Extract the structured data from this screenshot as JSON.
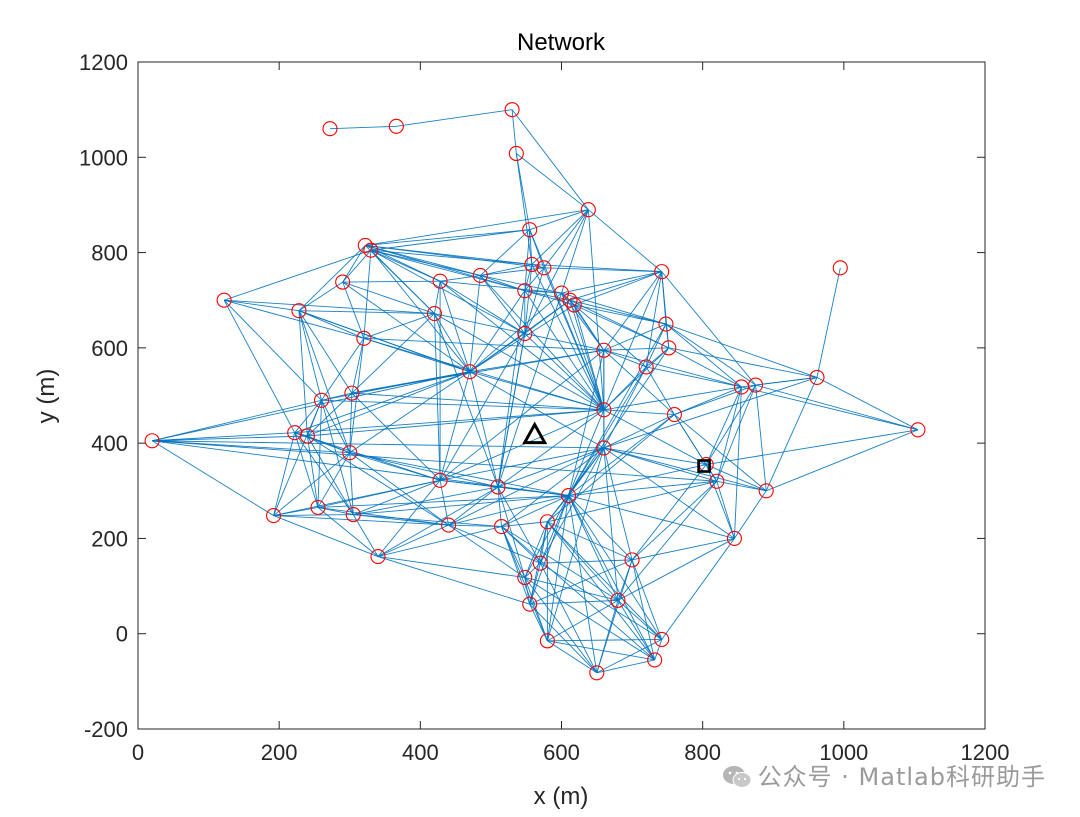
{
  "chart_data": {
    "type": "scatter",
    "title": "Network",
    "xlabel": "x (m)",
    "ylabel": "y (m)",
    "xlim": [
      0,
      1200
    ],
    "ylim": [
      -200,
      1200
    ],
    "xticks": [
      0,
      200,
      400,
      600,
      800,
      1000,
      1200
    ],
    "yticks": [
      -200,
      0,
      200,
      400,
      600,
      800,
      1000,
      1200
    ],
    "grid": false,
    "legend": "none",
    "colors": {
      "node": "#ff0000",
      "edge": "#0072bd",
      "marker": "#000000"
    },
    "nodes": [
      [
        272,
        1060
      ],
      [
        366,
        1065
      ],
      [
        530,
        1100
      ],
      [
        536,
        1008
      ],
      [
        638,
        890
      ],
      [
        555,
        848
      ],
      [
        322,
        815
      ],
      [
        330,
        805
      ],
      [
        558,
        775
      ],
      [
        575,
        768
      ],
      [
        742,
        760
      ],
      [
        995,
        768
      ],
      [
        122,
        700
      ],
      [
        228,
        678
      ],
      [
        290,
        738
      ],
      [
        428,
        740
      ],
      [
        485,
        752
      ],
      [
        548,
        720
      ],
      [
        600,
        715
      ],
      [
        612,
        700
      ],
      [
        618,
        690
      ],
      [
        420,
        672
      ],
      [
        748,
        650
      ],
      [
        548,
        630
      ],
      [
        320,
        620
      ],
      [
        752,
        600
      ],
      [
        660,
        595
      ],
      [
        962,
        538
      ],
      [
        875,
        522
      ],
      [
        855,
        518
      ],
      [
        260,
        490
      ],
      [
        303,
        505
      ],
      [
        760,
        460
      ],
      [
        1105,
        428
      ],
      [
        20,
        405
      ],
      [
        222,
        422
      ],
      [
        240,
        415
      ],
      [
        300,
        380
      ],
      [
        660,
        390
      ],
      [
        805,
        355
      ],
      [
        820,
        320
      ],
      [
        428,
        322
      ],
      [
        510,
        308
      ],
      [
        890,
        300
      ],
      [
        255,
        265
      ],
      [
        305,
        250
      ],
      [
        192,
        248
      ],
      [
        440,
        228
      ],
      [
        515,
        225
      ],
      [
        580,
        235
      ],
      [
        845,
        200
      ],
      [
        340,
        162
      ],
      [
        700,
        155
      ],
      [
        548,
        118
      ],
      [
        570,
        148
      ],
      [
        680,
        70
      ],
      [
        555,
        62
      ],
      [
        580,
        -15
      ],
      [
        742,
        -12
      ],
      [
        732,
        -55
      ],
      [
        650,
        -82
      ],
      [
        610,
        290
      ],
      [
        470,
        550
      ],
      [
        660,
        470
      ],
      [
        720,
        560
      ]
    ],
    "edges": [
      [
        0,
        1
      ],
      [
        1,
        2
      ],
      [
        2,
        3
      ],
      [
        2,
        4
      ],
      [
        3,
        4
      ],
      [
        3,
        8
      ],
      [
        3,
        5
      ],
      [
        4,
        5
      ],
      [
        4,
        10
      ],
      [
        4,
        8
      ],
      [
        4,
        9
      ],
      [
        4,
        23
      ],
      [
        4,
        18
      ],
      [
        4,
        6
      ],
      [
        4,
        63
      ],
      [
        11,
        27
      ],
      [
        27,
        29
      ],
      [
        27,
        28
      ],
      [
        27,
        33
      ],
      [
        27,
        22
      ],
      [
        27,
        25
      ],
      [
        27,
        43
      ],
      [
        27,
        38
      ],
      [
        28,
        33
      ],
      [
        28,
        39
      ],
      [
        28,
        40
      ],
      [
        28,
        32
      ],
      [
        28,
        10
      ],
      [
        28,
        43
      ],
      [
        29,
        33
      ],
      [
        29,
        50
      ],
      [
        33,
        39
      ],
      [
        33,
        43
      ],
      [
        43,
        50
      ],
      [
        43,
        39
      ],
      [
        43,
        40
      ],
      [
        43,
        32
      ],
      [
        50,
        39
      ],
      [
        50,
        52
      ],
      [
        50,
        40
      ],
      [
        50,
        61
      ],
      [
        12,
        7
      ],
      [
        12,
        13
      ],
      [
        12,
        24
      ],
      [
        12,
        30
      ],
      [
        12,
        35
      ],
      [
        6,
        13
      ],
      [
        6,
        14
      ],
      [
        6,
        15
      ],
      [
        6,
        16
      ],
      [
        6,
        5
      ],
      [
        6,
        9
      ],
      [
        6,
        8
      ],
      [
        6,
        21
      ],
      [
        6,
        17
      ],
      [
        34,
        35
      ],
      [
        34,
        36
      ],
      [
        34,
        30
      ],
      [
        34,
        46
      ],
      [
        34,
        37
      ],
      [
        34,
        61
      ],
      [
        34,
        38
      ],
      [
        34,
        40
      ],
      [
        34,
        62
      ],
      [
        46,
        35
      ],
      [
        46,
        44
      ],
      [
        46,
        45
      ],
      [
        46,
        41
      ],
      [
        46,
        51
      ],
      [
        46,
        47
      ],
      [
        46,
        30
      ],
      [
        46,
        37
      ],
      [
        51,
        44
      ],
      [
        51,
        45
      ],
      [
        51,
        47
      ],
      [
        51,
        48
      ],
      [
        51,
        53
      ],
      [
        51,
        56
      ],
      [
        51,
        42
      ],
      [
        51,
        41
      ],
      [
        56,
        53
      ],
      [
        56,
        54
      ],
      [
        56,
        55
      ],
      [
        56,
        57
      ],
      [
        56,
        60
      ],
      [
        56,
        52
      ],
      [
        56,
        48
      ],
      [
        56,
        49
      ],
      [
        60,
        57
      ],
      [
        60,
        58
      ],
      [
        60,
        59
      ],
      [
        60,
        55
      ],
      [
        60,
        54
      ],
      [
        60,
        53
      ],
      [
        60,
        52
      ],
      [
        59,
        58
      ],
      [
        59,
        55
      ],
      [
        59,
        57
      ],
      [
        59,
        52
      ],
      [
        59,
        53
      ],
      [
        59,
        49
      ],
      [
        59,
        48
      ],
      [
        58,
        55
      ],
      [
        58,
        52
      ],
      [
        58,
        50
      ],
      [
        58,
        49
      ],
      [
        58,
        54
      ],
      [
        58,
        57
      ],
      [
        57,
        55
      ],
      [
        57,
        53
      ],
      [
        57,
        49
      ],
      [
        57,
        48
      ],
      [
        57,
        61
      ],
      [
        55,
        52
      ],
      [
        55,
        49
      ],
      [
        55,
        48
      ],
      [
        55,
        61
      ],
      [
        55,
        40
      ],
      [
        55,
        50
      ],
      [
        55,
        53
      ],
      [
        13,
        14
      ],
      [
        13,
        24
      ],
      [
        13,
        30
      ],
      [
        13,
        31
      ],
      [
        13,
        21
      ],
      [
        13,
        36
      ],
      [
        13,
        37
      ],
      [
        13,
        62
      ],
      [
        14,
        15
      ],
      [
        14,
        24
      ],
      [
        14,
        7
      ],
      [
        14,
        21
      ],
      [
        15,
        16
      ],
      [
        15,
        21
      ],
      [
        15,
        23
      ],
      [
        15,
        18
      ],
      [
        15,
        62
      ],
      [
        16,
        17
      ],
      [
        16,
        18
      ],
      [
        16,
        8
      ],
      [
        16,
        9
      ],
      [
        16,
        23
      ],
      [
        17,
        18
      ],
      [
        17,
        19
      ],
      [
        17,
        20
      ],
      [
        17,
        23
      ],
      [
        17,
        62
      ],
      [
        18,
        19
      ],
      [
        18,
        20
      ],
      [
        18,
        10
      ],
      [
        18,
        26
      ],
      [
        18,
        22
      ],
      [
        19,
        20
      ],
      [
        19,
        10
      ],
      [
        19,
        22
      ],
      [
        19,
        25
      ],
      [
        19,
        26
      ],
      [
        20,
        10
      ],
      [
        20,
        22
      ],
      [
        20,
        26
      ],
      [
        20,
        25
      ],
      [
        20,
        64
      ],
      [
        10,
        22
      ],
      [
        10,
        25
      ],
      [
        10,
        64
      ],
      [
        10,
        8
      ],
      [
        10,
        9
      ],
      [
        22,
        25
      ],
      [
        22,
        26
      ],
      [
        22,
        64
      ],
      [
        22,
        29
      ],
      [
        22,
        28
      ],
      [
        25,
        26
      ],
      [
        25,
        64
      ],
      [
        25,
        63
      ],
      [
        25,
        29
      ],
      [
        26,
        63
      ],
      [
        26,
        64
      ],
      [
        26,
        38
      ],
      [
        26,
        29
      ],
      [
        26,
        32
      ],
      [
        64,
        63
      ],
      [
        64,
        29
      ],
      [
        64,
        32
      ],
      [
        64,
        38
      ],
      [
        21,
        24
      ],
      [
        21,
        62
      ],
      [
        21,
        23
      ],
      [
        21,
        31
      ],
      [
        21,
        41
      ],
      [
        21,
        42
      ],
      [
        24,
        31
      ],
      [
        24,
        30
      ],
      [
        24,
        62
      ],
      [
        24,
        37
      ],
      [
        30,
        31
      ],
      [
        30,
        35
      ],
      [
        30,
        36
      ],
      [
        30,
        37
      ],
      [
        30,
        44
      ],
      [
        30,
        45
      ],
      [
        31,
        36
      ],
      [
        31,
        37
      ],
      [
        31,
        62
      ],
      [
        31,
        41
      ],
      [
        35,
        36
      ],
      [
        35,
        37
      ],
      [
        35,
        44
      ],
      [
        35,
        45
      ],
      [
        35,
        41
      ],
      [
        35,
        62
      ],
      [
        36,
        37
      ],
      [
        36,
        44
      ],
      [
        36,
        45
      ],
      [
        36,
        47
      ],
      [
        37,
        44
      ],
      [
        37,
        45
      ],
      [
        37,
        41
      ],
      [
        37,
        47
      ],
      [
        37,
        42
      ],
      [
        37,
        62
      ],
      [
        44,
        45
      ],
      [
        44,
        47
      ],
      [
        44,
        41
      ],
      [
        45,
        47
      ],
      [
        45,
        41
      ],
      [
        45,
        48
      ],
      [
        45,
        42
      ],
      [
        47,
        48
      ],
      [
        47,
        41
      ],
      [
        47,
        42
      ],
      [
        47,
        53
      ],
      [
        47,
        54
      ],
      [
        48,
        42
      ],
      [
        48,
        49
      ],
      [
        48,
        61
      ],
      [
        48,
        53
      ],
      [
        48,
        54
      ],
      [
        49,
        61
      ],
      [
        49,
        52
      ],
      [
        49,
        54
      ],
      [
        49,
        38
      ],
      [
        49,
        40
      ],
      [
        52,
        61
      ],
      [
        52,
        40
      ],
      [
        52,
        54
      ],
      [
        52,
        39
      ],
      [
        53,
        54
      ],
      [
        53,
        42
      ],
      [
        53,
        49
      ],
      [
        54,
        61
      ],
      [
        54,
        42
      ],
      [
        23,
        62
      ],
      [
        23,
        63
      ],
      [
        23,
        26
      ],
      [
        23,
        19
      ],
      [
        23,
        42
      ],
      [
        62,
        63
      ],
      [
        62,
        41
      ],
      [
        62,
        42
      ],
      [
        62,
        38
      ],
      [
        62,
        26
      ],
      [
        63,
        38
      ],
      [
        63,
        32
      ],
      [
        63,
        39
      ],
      [
        63,
        61
      ],
      [
        63,
        42
      ],
      [
        63,
        41
      ],
      [
        63,
        29
      ],
      [
        38,
        32
      ],
      [
        38,
        39
      ],
      [
        38,
        40
      ],
      [
        38,
        61
      ],
      [
        38,
        42
      ],
      [
        38,
        41
      ],
      [
        38,
        43
      ],
      [
        32,
        39
      ],
      [
        32,
        40
      ],
      [
        32,
        29
      ],
      [
        39,
        40
      ],
      [
        39,
        61
      ],
      [
        40,
        61
      ],
      [
        61,
        42
      ],
      [
        61,
        41
      ],
      [
        41,
        42
      ],
      [
        42,
        23
      ],
      [
        42,
        18
      ],
      [
        42,
        17
      ],
      [
        41,
        15
      ],
      [
        41,
        23
      ],
      [
        41,
        26
      ],
      [
        8,
        9
      ],
      [
        8,
        23
      ],
      [
        8,
        17
      ],
      [
        9,
        23
      ],
      [
        9,
        17
      ],
      [
        5,
        8
      ],
      [
        5,
        17
      ],
      [
        5,
        16
      ],
      [
        5,
        9
      ],
      [
        7,
        15
      ],
      [
        7,
        16
      ],
      [
        7,
        21
      ],
      [
        7,
        24
      ],
      [
        7,
        62
      ],
      [
        7,
        23
      ],
      [
        7,
        17
      ],
      [
        7,
        8
      ],
      [
        7,
        5
      ],
      [
        12,
        21
      ],
      [
        30,
        62
      ],
      [
        36,
        62
      ],
      [
        37,
        61
      ],
      [
        45,
        61
      ],
      [
        44,
        61
      ],
      [
        35,
        63
      ],
      [
        36,
        63
      ],
      [
        31,
        63
      ],
      [
        30,
        63
      ],
      [
        24,
        63
      ],
      [
        21,
        63
      ],
      [
        24,
        26
      ],
      [
        31,
        26
      ],
      [
        13,
        62
      ],
      [
        14,
        62
      ],
      [
        15,
        63
      ],
      [
        47,
        61
      ],
      [
        47,
        38
      ],
      [
        48,
        38
      ],
      [
        53,
        61
      ],
      [
        54,
        38
      ],
      [
        56,
        61
      ],
      [
        57,
        38
      ],
      [
        58,
        61
      ],
      [
        59,
        61
      ],
      [
        60,
        61
      ],
      [
        55,
        38
      ],
      [
        52,
        38
      ],
      [
        50,
        38
      ],
      [
        49,
        32
      ],
      [
        40,
        29
      ],
      [
        39,
        29
      ],
      [
        61,
        32
      ],
      [
        26,
        61
      ],
      [
        25,
        61
      ],
      [
        22,
        61
      ],
      [
        64,
        61
      ],
      [
        20,
        63
      ],
      [
        19,
        63
      ],
      [
        18,
        63
      ],
      [
        17,
        63
      ],
      [
        16,
        63
      ],
      [
        16,
        62
      ],
      [
        18,
        62
      ],
      [
        19,
        62
      ],
      [
        20,
        62
      ],
      [
        10,
        63
      ],
      [
        10,
        26
      ],
      [
        8,
        63
      ],
      [
        9,
        63
      ],
      [
        5,
        63
      ]
    ],
    "special_markers": [
      {
        "shape": "triangle",
        "x": 562,
        "y": 418
      },
      {
        "shape": "square",
        "x": 802,
        "y": 352
      }
    ]
  },
  "watermark": {
    "text": "公众号 · Matlab科研助手",
    "icon": "wechat-icon"
  }
}
